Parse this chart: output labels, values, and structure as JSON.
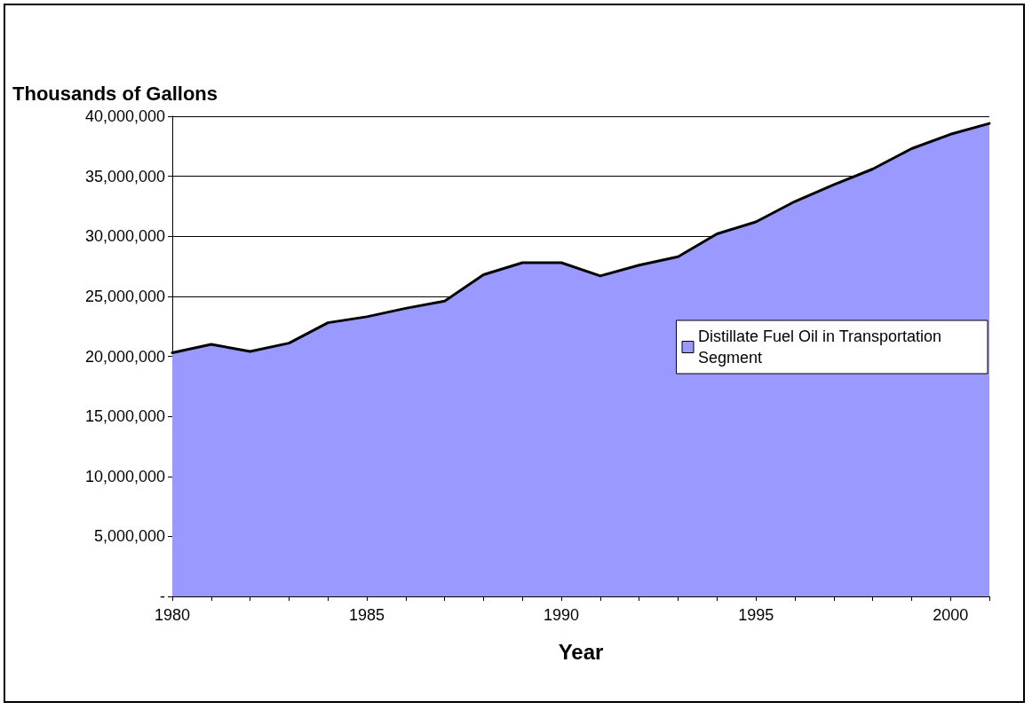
{
  "chart_data": {
    "type": "area",
    "ylabel": "Thousands of Gallons",
    "xlabel": "Year",
    "categories": [
      "1980",
      null,
      null,
      null,
      null,
      "1985",
      null,
      null,
      null,
      null,
      "1990",
      null,
      null,
      null,
      null,
      "1995",
      null,
      null,
      null,
      null,
      "2000",
      null
    ],
    "series": [
      {
        "name": "Distillate Fuel Oil in Transportation Segment",
        "color": "#9999ff",
        "values": [
          20300000,
          21000000,
          20400000,
          21100000,
          22800000,
          23300000,
          24000000,
          24600000,
          26800000,
          27800000,
          27800000,
          26700000,
          27600000,
          28300000,
          30200000,
          31200000,
          32900000,
          34300000,
          35600000,
          37300000,
          38500000,
          39400000
        ]
      }
    ],
    "ylim": [
      0,
      40000000
    ],
    "yticks": [
      {
        "value": 0,
        "label": "-"
      },
      {
        "value": 5000000,
        "label": "5,000,000"
      },
      {
        "value": 10000000,
        "label": "10,000,000"
      },
      {
        "value": 15000000,
        "label": "15,000,000"
      },
      {
        "value": 20000000,
        "label": "20,000,000"
      },
      {
        "value": 25000000,
        "label": "25,000,000"
      },
      {
        "value": 30000000,
        "label": "30,000,000"
      },
      {
        "value": 35000000,
        "label": "35,000,000"
      },
      {
        "value": 40000000,
        "label": "40,000,000"
      }
    ],
    "grid": "y",
    "legend": "right",
    "marker": "none",
    "line_style": "solid"
  }
}
